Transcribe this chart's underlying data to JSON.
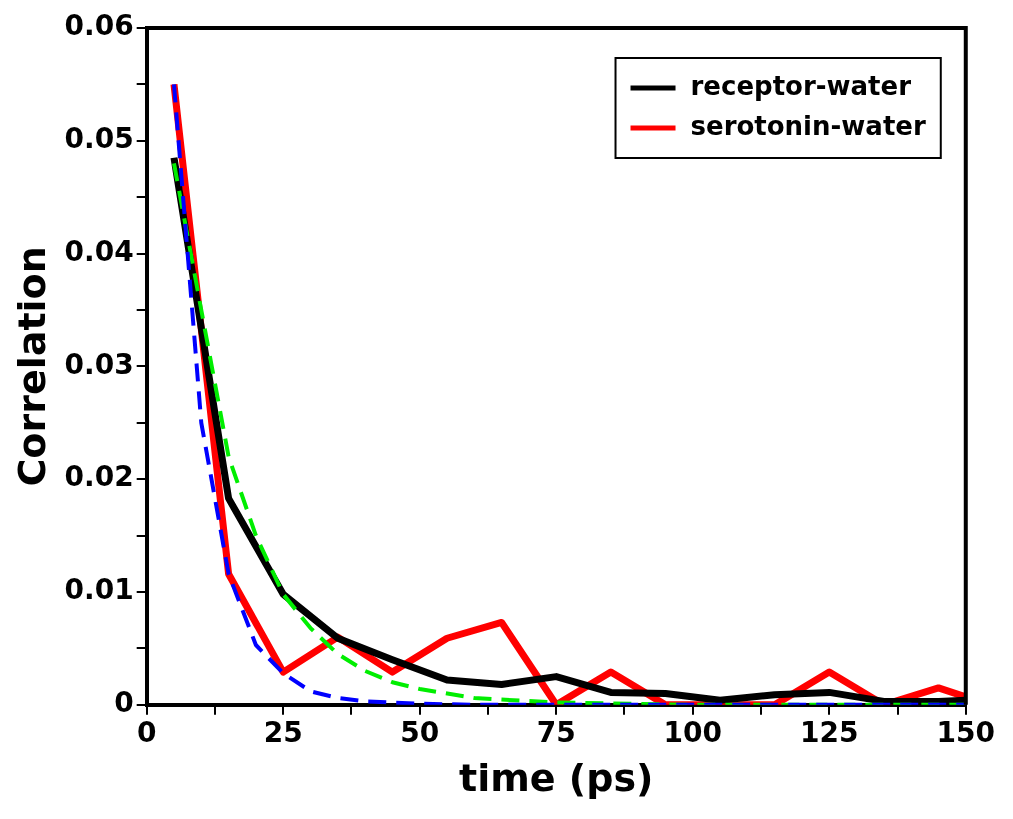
{
  "chart_data": {
    "type": "line",
    "xlabel": "time (ps)",
    "ylabel": "Correlation",
    "xlim": [
      0,
      150
    ],
    "xticks": [
      0,
      {
        "value": 12.5,
        "label": null
      },
      25,
      {
        "value": 37.5,
        "label": null
      },
      50,
      {
        "value": 62.5,
        "label": null
      },
      75,
      {
        "value": 87.5,
        "label": null
      },
      100,
      {
        "value": 112.5,
        "label": null
      },
      125,
      {
        "value": 137.5,
        "label": null
      },
      150
    ],
    "ylim": [
      0,
      0.06
    ],
    "yticks": [
      0,
      {
        "value": 0.005,
        "label": null
      },
      0.01,
      {
        "value": 0.015,
        "label": null
      },
      0.02,
      {
        "value": 0.025,
        "label": null
      },
      0.03,
      {
        "value": 0.035,
        "label": null
      },
      0.04,
      {
        "value": 0.045,
        "label": null
      },
      0.05,
      {
        "value": 0.055,
        "label": null
      },
      0.06
    ],
    "grid": false,
    "legend": "top right",
    "marker": "none",
    "series": [
      {
        "name": "receptor-water",
        "color": "#000000",
        "line_style": "solid",
        "x": [
          5,
          15,
          25,
          35,
          45,
          55,
          65,
          75,
          85,
          95,
          105,
          115,
          125,
          135,
          145,
          150
        ],
        "values": [
          0.0485,
          0.0183,
          0.0098,
          0.0059,
          0.004,
          0.0022,
          0.0018,
          0.0025,
          0.0011,
          0.001,
          0.0004,
          0.0009,
          0.0011,
          0.0003,
          0.0003,
          0.0004
        ]
      },
      {
        "name": "serotonin-water",
        "color": "#ff0000",
        "line_style": "solid",
        "x": [
          5,
          15,
          25,
          35,
          45,
          55,
          65,
          75,
          85,
          95,
          105,
          115,
          125,
          135,
          145,
          150
        ],
        "values": [
          0.055,
          0.0116,
          0.0029,
          0.006,
          0.0029,
          0.0059,
          0.0073,
          0,
          0.0029,
          0,
          0,
          0,
          0.0029,
          0,
          0.0015,
          0.0007
        ]
      },
      {
        "color": "#0000ff",
        "line_style": "dashed",
        "x": [
          5,
          10,
          15,
          20,
          25,
          30,
          35,
          40,
          50,
          60,
          75,
          100,
          125,
          150
        ],
        "values": [
          0.055,
          0.025,
          0.0116,
          0.0053,
          0.0028,
          0.0012,
          0.0006,
          0.0003,
          0.0001,
          0,
          0,
          0,
          0,
          0
        ]
      },
      {
        "color": "#00ee00",
        "line_style": "dashed",
        "x": [
          5,
          10,
          15,
          20,
          25,
          30,
          35,
          40,
          45,
          50,
          60,
          75,
          100,
          125,
          150
        ],
        "values": [
          0.048,
          0.035,
          0.022,
          0.015,
          0.0098,
          0.0068,
          0.0045,
          0.003,
          0.002,
          0.0014,
          0.0006,
          0.0002,
          0,
          0,
          0
        ]
      }
    ]
  }
}
